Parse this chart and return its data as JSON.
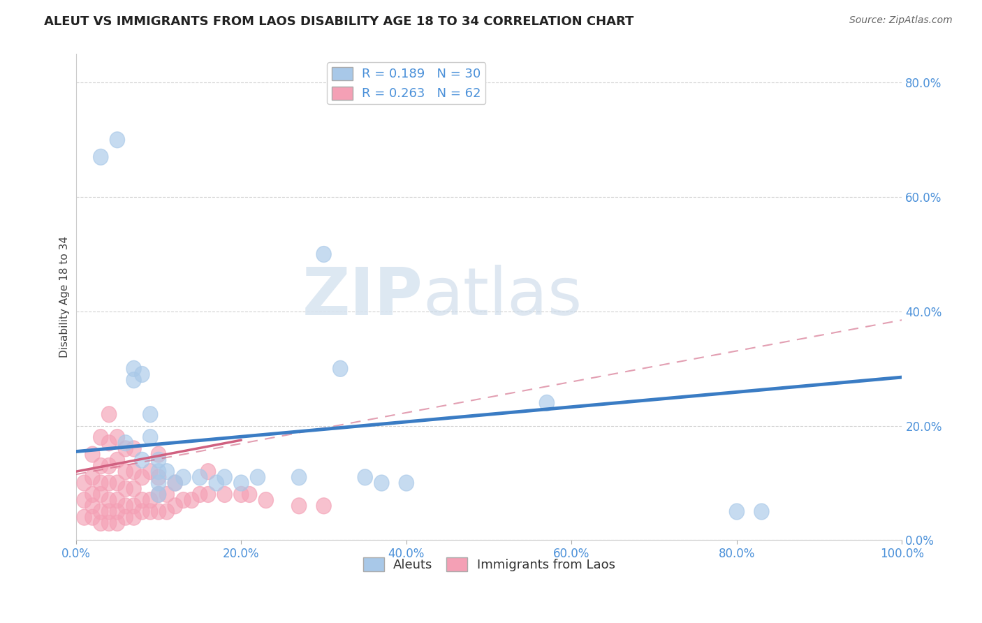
{
  "title": "ALEUT VS IMMIGRANTS FROM LAOS DISABILITY AGE 18 TO 34 CORRELATION CHART",
  "source": "Source: ZipAtlas.com",
  "xlabel": "",
  "ylabel": "Disability Age 18 to 34",
  "watermark_zip": "ZIP",
  "watermark_atlas": "atlas",
  "aleuts_R": 0.189,
  "aleuts_N": 30,
  "laos_R": 0.263,
  "laos_N": 62,
  "aleuts_color": "#A8C8E8",
  "laos_color": "#F4A0B5",
  "aleuts_line_color": "#3A7CC4",
  "laos_line_color": "#D06080",
  "aleuts_line_dash_color": "#C0A0B8",
  "aleuts_x": [
    0.03,
    0.05,
    0.06,
    0.07,
    0.07,
    0.08,
    0.08,
    0.09,
    0.09,
    0.1,
    0.1,
    0.1,
    0.1,
    0.11,
    0.12,
    0.13,
    0.15,
    0.17,
    0.18,
    0.2,
    0.22,
    0.27,
    0.3,
    0.32,
    0.35,
    0.37,
    0.4,
    0.57,
    0.8,
    0.83
  ],
  "aleuts_y": [
    0.67,
    0.7,
    0.17,
    0.3,
    0.28,
    0.29,
    0.14,
    0.22,
    0.18,
    0.14,
    0.12,
    0.1,
    0.08,
    0.12,
    0.1,
    0.11,
    0.11,
    0.1,
    0.11,
    0.1,
    0.11,
    0.11,
    0.5,
    0.3,
    0.11,
    0.1,
    0.1,
    0.24,
    0.05,
    0.05
  ],
  "laos_x": [
    0.01,
    0.01,
    0.01,
    0.02,
    0.02,
    0.02,
    0.02,
    0.02,
    0.03,
    0.03,
    0.03,
    0.03,
    0.03,
    0.03,
    0.04,
    0.04,
    0.04,
    0.04,
    0.04,
    0.04,
    0.04,
    0.05,
    0.05,
    0.05,
    0.05,
    0.05,
    0.05,
    0.06,
    0.06,
    0.06,
    0.06,
    0.06,
    0.07,
    0.07,
    0.07,
    0.07,
    0.07,
    0.08,
    0.08,
    0.08,
    0.09,
    0.09,
    0.09,
    0.1,
    0.1,
    0.1,
    0.1,
    0.11,
    0.11,
    0.12,
    0.12,
    0.13,
    0.14,
    0.15,
    0.16,
    0.16,
    0.18,
    0.2,
    0.21,
    0.23,
    0.27,
    0.3
  ],
  "laos_y": [
    0.04,
    0.07,
    0.1,
    0.04,
    0.06,
    0.08,
    0.11,
    0.15,
    0.03,
    0.05,
    0.08,
    0.1,
    0.13,
    0.18,
    0.03,
    0.05,
    0.07,
    0.1,
    0.13,
    0.17,
    0.22,
    0.03,
    0.05,
    0.07,
    0.1,
    0.14,
    0.18,
    0.04,
    0.06,
    0.09,
    0.12,
    0.16,
    0.04,
    0.06,
    0.09,
    0.12,
    0.16,
    0.05,
    0.07,
    0.11,
    0.05,
    0.07,
    0.12,
    0.05,
    0.08,
    0.11,
    0.15,
    0.05,
    0.08,
    0.06,
    0.1,
    0.07,
    0.07,
    0.08,
    0.08,
    0.12,
    0.08,
    0.08,
    0.08,
    0.07,
    0.06,
    0.06
  ],
  "xlim": [
    0.0,
    1.0
  ],
  "ylim": [
    0.0,
    0.85
  ],
  "aleuts_trend_x0": 0.0,
  "aleuts_trend_y0": 0.155,
  "aleuts_trend_x1": 1.0,
  "aleuts_trend_y1": 0.285,
  "laos_dash_trend_x0": 0.0,
  "laos_dash_trend_y0": 0.115,
  "laos_dash_trend_x1": 1.0,
  "laos_dash_trend_y1": 0.385,
  "laos_solid_trend_x0": 0.0,
  "laos_solid_trend_x1": 0.2,
  "laos_solid_trend_y0": 0.12,
  "laos_solid_trend_y1": 0.175,
  "background_color": "#FFFFFF",
  "grid_color": "#CCCCCC"
}
